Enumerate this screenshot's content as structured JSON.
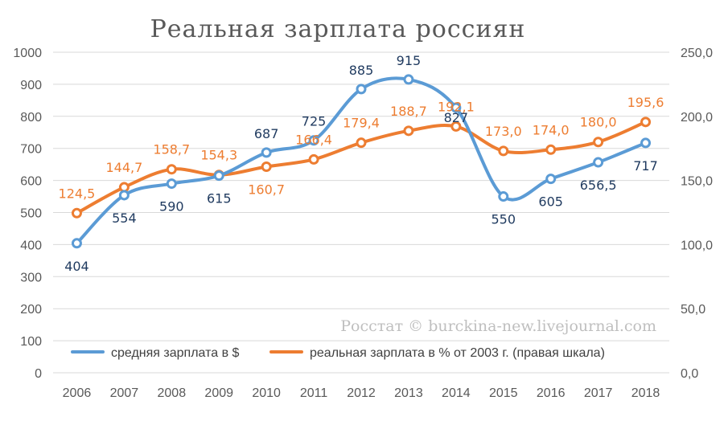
{
  "chart_data": {
    "type": "line",
    "title": "Реальная зарплата россиян",
    "categories": [
      "2006",
      "2007",
      "2008",
      "2009",
      "2010",
      "2011",
      "2012",
      "2013",
      "2014",
      "2015",
      "2016",
      "2017",
      "2018"
    ],
    "series": [
      {
        "name": "средняя зарплата в $",
        "axis": "left",
        "color": "#5b9bd5",
        "values": [
          404,
          554,
          590,
          615,
          687,
          725,
          885,
          915,
          827,
          550,
          605,
          656.5,
          717
        ],
        "labels": [
          "404",
          "554",
          "590",
          "615",
          "687",
          "725",
          "885",
          "915",
          "827",
          "550",
          "605",
          "656,5",
          "717"
        ]
      },
      {
        "name": "реальная зарплата в % от 2003 г. (правая шкала)",
        "axis": "right",
        "color": "#ed7d31",
        "values": [
          124.5,
          144.7,
          158.7,
          154.3,
          160.7,
          166.4,
          179.4,
          188.7,
          192.1,
          173.0,
          174.0,
          180.0,
          195.6
        ],
        "labels": [
          "124,5",
          "144,7",
          "158,7",
          "154,3",
          "160,7",
          "166,4",
          "179,4",
          "188,7",
          "192,1",
          "173,0",
          "174,0",
          "180,0",
          "195,6"
        ]
      }
    ],
    "y_left": {
      "min": 0,
      "max": 1000,
      "ticks": [
        "0",
        "100",
        "200",
        "300",
        "400",
        "500",
        "600",
        "700",
        "800",
        "900",
        "1000"
      ]
    },
    "y_right": {
      "min": 0,
      "max": 250,
      "ticks": [
        "0,0",
        "50,0",
        "100,0",
        "150,0",
        "200,0",
        "250,0"
      ]
    },
    "grid": true,
    "legend_position": "bottom",
    "annotation": "Росстат © burckina-new.livejournal.com"
  }
}
